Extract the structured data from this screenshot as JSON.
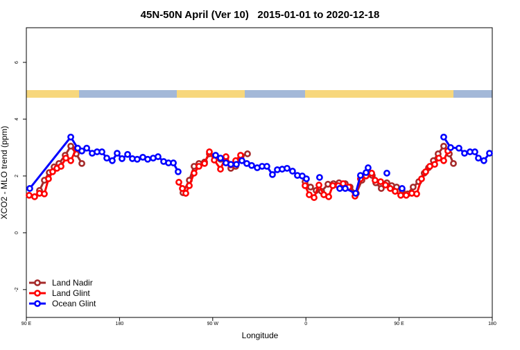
{
  "chart_data": {
    "type": "line",
    "title": "45N-50N April (Ver 10)   2015-01-01 to 2020-12-18",
    "xlabel": "Longitude",
    "ylabel": "XCO2 - MLO trend (ppm)",
    "xlim": [
      90,
      540
    ],
    "ylim": [
      -2.98,
      7.22
    ],
    "xticks": [
      {
        "value": 90,
        "label": "90 E"
      },
      180,
      {
        "value": 270,
        "label": "90 W"
      },
      {
        "value": 360,
        "label": "0"
      },
      {
        "value": 450,
        "label": "90 E"
      },
      180
    ],
    "yticks": [
      -2,
      0,
      2,
      4,
      6
    ],
    "legend": "bottom-left",
    "series": [
      {
        "name": "Land Nadir",
        "color": "#a52a2a",
        "x": [
          102.7,
          107.4,
          112.1,
          116.8,
          121.5,
          127.5,
          132.9,
          138.2,
          143.6,
          null,
          241.3,
          247.4,
          252.0,
          256.7,
          262.1,
          266.8,
          277.5,
          282.8,
          287.5,
          292.2,
          297.6,
          303.6,
          null,
          359.2,
          364.5,
          369.9,
          375.2,
          381.3,
          386.6,
          392.0,
          398.0,
          402.7,
          408.7,
          414.1,
          419.4,
          424.1,
          427.5,
          432.8,
          438.2,
          442.9,
          447.6,
          452.9,
          458.3,
          463.6,
          469.0,
          474.3,
          478.4,
          483.1,
          487.7,
          493.1,
          498.5,
          502.5
        ],
        "values": [
          1.49,
          1.85,
          2.12,
          2.32,
          2.44,
          2.73,
          3.05,
          2.78,
          2.44,
          null,
          1.41,
          1.85,
          2.34,
          2.44,
          2.49,
          2.78,
          2.59,
          2.66,
          2.27,
          2.34,
          2.71,
          2.78,
          null,
          1.8,
          1.61,
          1.49,
          1.46,
          1.71,
          1.73,
          1.76,
          1.73,
          1.61,
          1.39,
          1.85,
          2.05,
          2.02,
          1.76,
          1.56,
          1.76,
          1.66,
          1.61,
          1.49,
          1.37,
          1.61,
          1.8,
          2.1,
          2.29,
          2.54,
          2.78,
          3.05,
          2.78,
          2.44
        ]
      },
      {
        "name": "Land Glint",
        "color": "#ff0000",
        "x": [
          92.7,
          98.0,
          102.7,
          107.4,
          111.4,
          115.4,
          119.5,
          123.5,
          128.2,
          132.9,
          138.2,
          null,
          237.3,
          240.7,
          244.0,
          247.4,
          252.0,
          256.7,
          262.1,
          266.8,
          271.5,
          277.5,
          282.8,
          287.5,
          292.2,
          296.9,
          null,
          359.2,
          363.2,
          367.9,
          372.6,
          377.3,
          382.0,
          386.0,
          391.3,
          396.0,
          401.4,
          407.4,
          412.7,
          418.1,
          423.5,
          426.8,
          432.2,
          436.9,
          441.5,
          446.2,
          451.6,
          456.9,
          462.3,
          467.0,
          471.7,
          475.7,
          479.7,
          484.4,
          488.4,
          493.1,
          497.1
        ],
        "values": [
          1.32,
          1.27,
          1.39,
          1.37,
          1.9,
          2.15,
          2.27,
          2.34,
          2.63,
          2.54,
          2.95,
          null,
          1.78,
          1.56,
          1.39,
          1.66,
          2.1,
          2.34,
          2.44,
          2.85,
          2.56,
          2.24,
          2.68,
          2.39,
          2.54,
          2.73,
          null,
          1.66,
          1.34,
          1.24,
          1.68,
          1.34,
          1.27,
          1.66,
          1.66,
          1.73,
          1.61,
          1.29,
          1.9,
          2.0,
          2.1,
          1.85,
          1.8,
          1.68,
          1.56,
          1.46,
          1.32,
          1.32,
          1.39,
          1.37,
          1.9,
          2.15,
          2.34,
          2.41,
          2.63,
          2.54,
          2.88
        ]
      },
      {
        "name": "Ocean Glint",
        "color": "#0000ff",
        "x": [
          93.3,
          132.9,
          139.6,
          143.6,
          148.3,
          153.6,
          158.3,
          163.0,
          167.7,
          173.0,
          177.7,
          182.4,
          187.8,
          192.4,
          197.1,
          202.5,
          207.2,
          212.5,
          217.2,
          222.6,
          227.3,
          232.0,
          236.6,
          null,
          272.8,
          277.5,
          282.8,
          287.5,
          292.9,
          298.2,
          302.9,
          307.6,
          313.0,
          317.7,
          322.3,
          327.7,
          332.4,
          337.1,
          341.8,
          347.1,
          351.8,
          356.5,
          360.5,
          null,
          373.2,
          null,
          392.7,
          398.0,
          408.1,
          412.7,
          418.1,
          420.1,
          null,
          438.2,
          null,
          452.9,
          null,
          493.1,
          499.8,
          507.8,
          513.2,
          518.5,
          523.2,
          526.6,
          531.9,
          537.3
        ],
        "values": [
          1.56,
          3.37,
          2.98,
          2.88,
          2.98,
          2.8,
          2.85,
          2.85,
          2.63,
          2.54,
          2.8,
          2.61,
          2.76,
          2.61,
          2.59,
          2.66,
          2.59,
          2.63,
          2.68,
          2.51,
          2.46,
          2.46,
          2.15,
          null,
          2.73,
          2.63,
          2.46,
          2.41,
          2.41,
          2.54,
          2.44,
          2.37,
          2.29,
          2.34,
          2.34,
          2.05,
          2.22,
          2.24,
          2.27,
          2.17,
          2.02,
          2.0,
          1.9,
          null,
          1.95,
          null,
          1.56,
          1.56,
          1.39,
          2.02,
          2.12,
          2.29,
          null,
          2.1,
          null,
          1.56,
          null,
          3.37,
          3.0,
          2.98,
          2.8,
          2.85,
          2.85,
          2.63,
          2.54,
          2.8
        ]
      }
    ]
  }
}
